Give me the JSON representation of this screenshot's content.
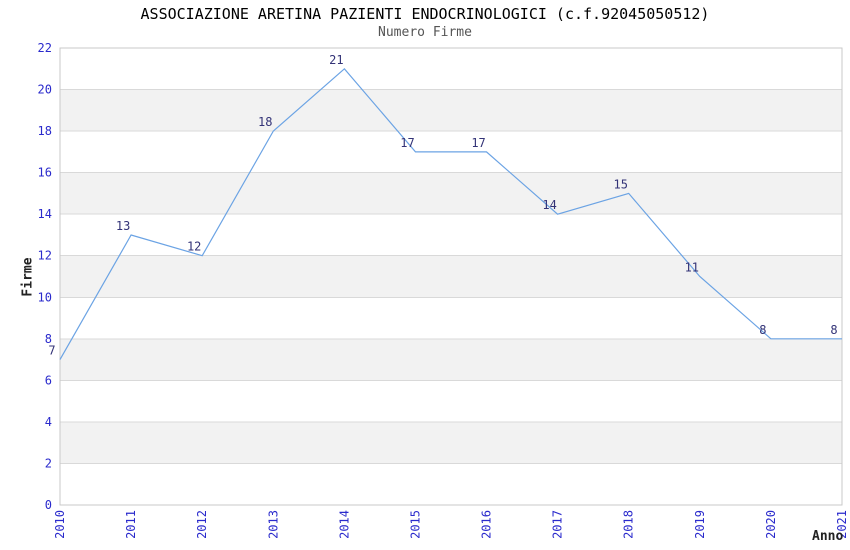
{
  "chart_data": {
    "type": "line",
    "title": "ASSOCIAZIONE ARETINA PAZIENTI ENDOCRINOLOGICI (c.f.92045050512)",
    "subtitle": "Numero Firme",
    "xlabel": "Anno",
    "ylabel": "Firme",
    "categories": [
      "2010",
      "2011",
      "2012",
      "2013",
      "2014",
      "2015",
      "2016",
      "2017",
      "2018",
      "2019",
      "2020",
      "2021"
    ],
    "values": [
      7,
      13,
      12,
      18,
      21,
      17,
      17,
      14,
      15,
      11,
      8,
      8
    ],
    "ylim": [
      0,
      22
    ],
    "ytick_step": 2,
    "grid": "alternating horizontal bands every 2 units, gridlines at even values",
    "legend": "none",
    "markers": "none",
    "colors": {
      "line": "#6ba3e4",
      "tick_labels": "#2a2acc",
      "value_labels": "#333377",
      "band": "#f2f2f2",
      "gridline": "#d9d9d9",
      "plot_border": "#c9c9c9",
      "title": "#000000",
      "subtitle": "#555555",
      "axis_titles": "#222222",
      "background": "#ffffff"
    }
  }
}
